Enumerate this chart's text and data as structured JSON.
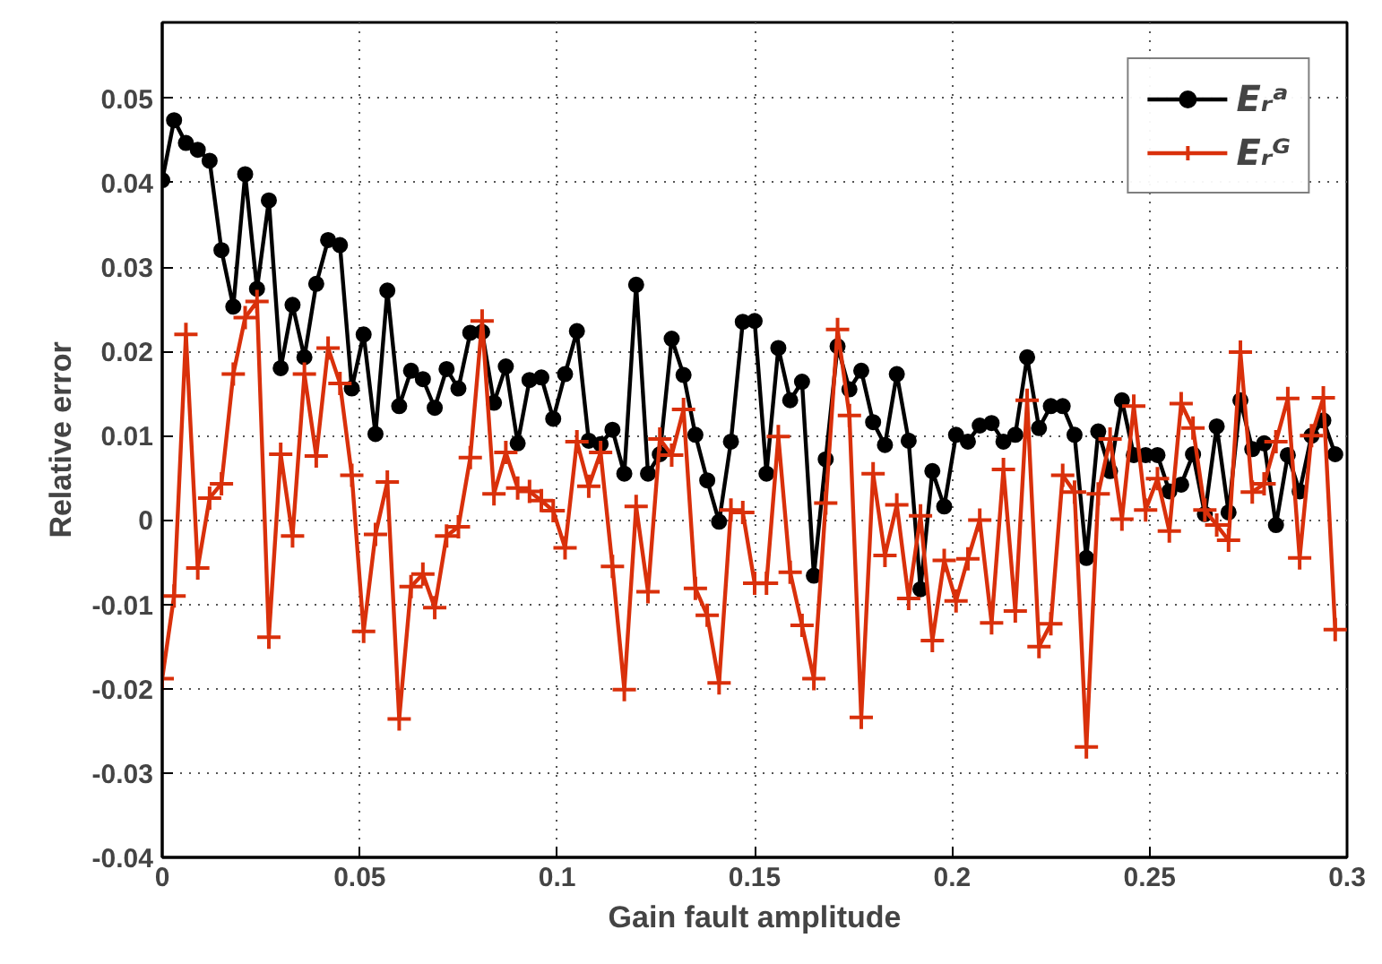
{
  "chart_data": {
    "type": "line",
    "xlabel": "Gain fault amplitude",
    "ylabel": "Relative error",
    "x": [
      0,
      0.003,
      0.006,
      0.009,
      0.012,
      0.015,
      0.018,
      0.021,
      0.024,
      0.027,
      0.03,
      0.033,
      0.036,
      0.039,
      0.042,
      0.045,
      0.048,
      0.051,
      0.054,
      0.057,
      0.06,
      0.063,
      0.066,
      0.069,
      0.072,
      0.075,
      0.078,
      0.081,
      0.084,
      0.087,
      0.09,
      0.093,
      0.096,
      0.099,
      0.102,
      0.105,
      0.108,
      0.111,
      0.114,
      0.117,
      0.12,
      0.123,
      0.126,
      0.129,
      0.132,
      0.135,
      0.138,
      0.141,
      0.144,
      0.147,
      0.15,
      0.153,
      0.156,
      0.159,
      0.162,
      0.165,
      0.168,
      0.171,
      0.174,
      0.177,
      0.18,
      0.183,
      0.186,
      0.189,
      0.192,
      0.195,
      0.198,
      0.201,
      0.204,
      0.207,
      0.21,
      0.213,
      0.216,
      0.219,
      0.222,
      0.225,
      0.228,
      0.231,
      0.234,
      0.237,
      0.24,
      0.243,
      0.246,
      0.249,
      0.252,
      0.255,
      0.258,
      0.261,
      0.264,
      0.267,
      0.27,
      0.273,
      0.276,
      0.279,
      0.282,
      0.285,
      0.288,
      0.291,
      0.294,
      0.297
    ],
    "series": [
      {
        "name": "Eᵣᵃ",
        "color": "#000000",
        "marker": "circle",
        "values": [
          0.0403,
          0.0474,
          0.0447,
          0.0439,
          0.0426,
          0.032,
          0.0253,
          0.041,
          0.0274,
          0.0379,
          0.018,
          0.0255,
          0.0193,
          0.028,
          0.0332,
          0.0326,
          0.0156,
          0.022,
          0.0102,
          0.0272,
          0.0135,
          0.0177,
          0.0167,
          0.0133,
          0.0179,
          0.0156,
          0.0222,
          0.0223,
          0.0139,
          0.0182,
          0.0091,
          0.0166,
          0.0169,
          0.012,
          0.0173,
          0.0224,
          0.0094,
          0.009,
          0.0107,
          0.0055,
          0.0279,
          0.0055,
          0.0078,
          0.0215,
          0.0172,
          0.0101,
          0.0047,
          -0.0002,
          0.0093,
          0.0235,
          0.0236,
          0.0055,
          0.0204,
          0.0142,
          0.0164,
          -0.0066,
          0.0072,
          0.0206,
          0.0155,
          0.0177,
          0.0116,
          0.0089,
          0.0173,
          0.0094,
          -0.0082,
          0.0058,
          0.0016,
          0.0101,
          0.0093,
          0.0112,
          0.0115,
          0.0093,
          0.0101,
          0.0193,
          0.0109,
          0.0135,
          0.0135,
          0.0101,
          -0.0045,
          0.0105,
          0.0058,
          0.0142,
          0.0077,
          0.0077,
          0.0077,
          0.0034,
          0.0042,
          0.0078,
          0.0007,
          0.0111,
          0.0009,
          0.0142,
          0.0084,
          0.0091,
          -0.0006,
          0.0077,
          0.0034,
          0.01,
          0.0118,
          0.0078
        ]
      },
      {
        "name": "Eᵣᴳ",
        "color": "#d9300b",
        "marker": "cross",
        "values": [
          -0.0188,
          -0.009,
          0.022,
          -0.0057,
          0.0026,
          0.0043,
          0.0173,
          0.024,
          0.0259,
          -0.0139,
          0.0078,
          -0.0019,
          0.0173,
          0.0076,
          0.0204,
          0.0162,
          0.0053,
          -0.0132,
          -0.0017,
          0.0045,
          -0.0236,
          -0.0079,
          -0.0064,
          -0.0104,
          -0.0019,
          -0.0008,
          0.0074,
          0.0236,
          0.0031,
          0.008,
          0.0038,
          0.0034,
          0.0023,
          0.0011,
          -0.0033,
          0.0093,
          0.004,
          0.008,
          -0.0055,
          -0.0201,
          0.0016,
          -0.0085,
          0.0096,
          0.0077,
          0.0131,
          -0.0081,
          -0.0113,
          -0.0193,
          0.0012,
          0.0009,
          -0.0075,
          -0.0075,
          0.0099,
          -0.0062,
          -0.0125,
          -0.0188,
          0.002,
          0.0226,
          0.0124,
          -0.0234,
          0.0055,
          -0.0042,
          0.0018,
          -0.0093,
          0.0005,
          -0.0143,
          -0.0048,
          -0.0096,
          -0.0046,
          0,
          -0.0122,
          0.006,
          -0.0108,
          0.0142,
          -0.015,
          -0.0123,
          0.0053,
          0.0033,
          -0.0269,
          0.0031,
          0.0096,
          0.0001,
          0.0135,
          0.0012,
          0.0049,
          -0.0013,
          0.0138,
          0.0109,
          0.0012,
          -0.0006,
          -0.0024,
          0.0199,
          0.0033,
          0.0043,
          0.0093,
          0.0144,
          -0.0045,
          0.01,
          0.0145,
          -0.013
        ]
      }
    ],
    "xlim": [
      0,
      0.3
    ],
    "ylim": [
      -0.04,
      0.059
    ],
    "xticks": [
      0,
      0.05,
      0.1,
      0.15,
      0.2,
      0.25,
      0.3
    ],
    "yticks": [
      -0.04,
      -0.03,
      -0.02,
      -0.01,
      0,
      0.01,
      0.02,
      0.03,
      0.04,
      0.05
    ],
    "grid": true,
    "legend": "top right",
    "line_style": "solid"
  }
}
